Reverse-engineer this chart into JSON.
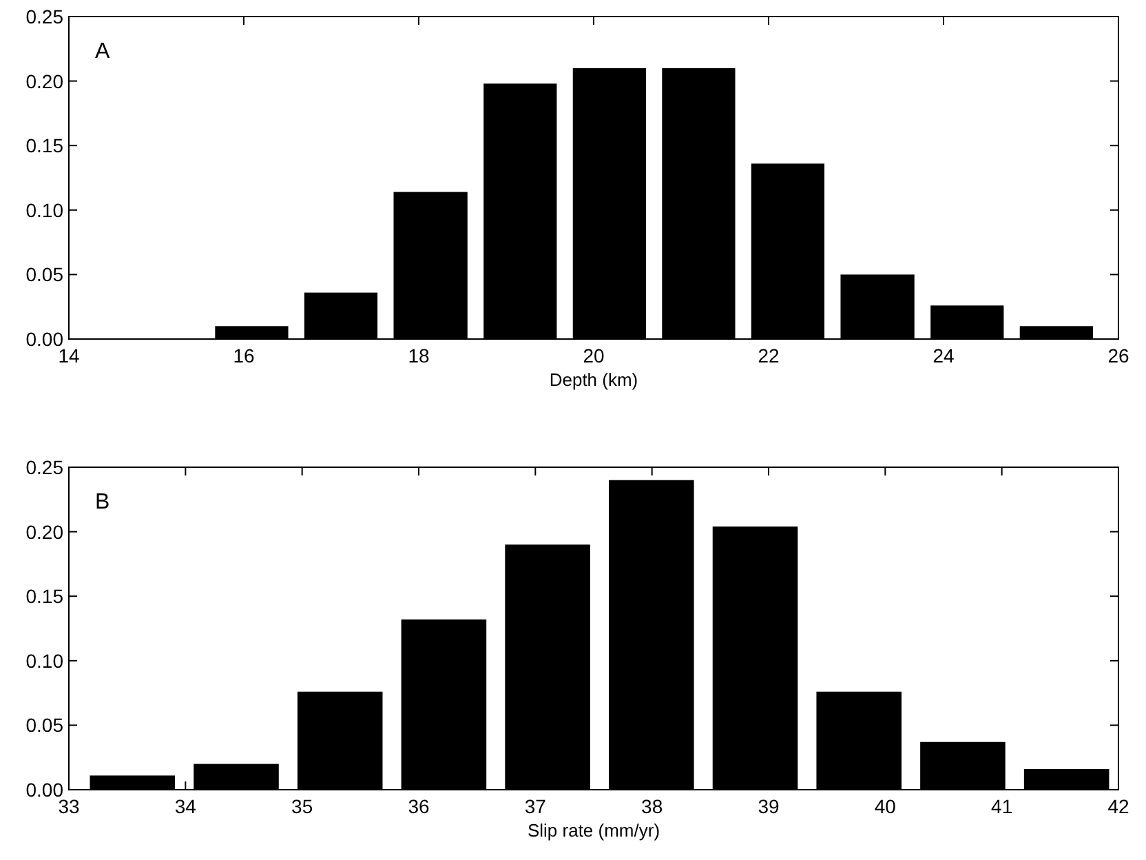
{
  "chart_data": [
    {
      "type": "histogram",
      "title": "A",
      "xlabel": "Depth (km)",
      "bins": [
        15.58,
        16.6,
        17.62,
        18.65,
        19.67,
        20.69,
        21.71,
        22.73,
        23.76,
        24.78,
        25.8
      ],
      "values": [
        0.01,
        0.036,
        0.114,
        0.198,
        0.21,
        0.21,
        0.136,
        0.05,
        0.026,
        0.01
      ],
      "color": "#000000",
      "xlim": [
        14,
        26
      ],
      "xticks": [
        14,
        16,
        18,
        20,
        22,
        24,
        26
      ],
      "ylim": [
        0,
        0.25
      ],
      "yticks": [
        {
          "value": 0,
          "label": "0.00"
        },
        {
          "value": 0.05,
          "label": "0.05"
        },
        {
          "value": 0.1,
          "label": "0.10"
        },
        {
          "value": 0.15,
          "label": "0.15"
        },
        {
          "value": 0.2,
          "label": "0.20"
        },
        {
          "value": 0.25,
          "label": "0.25"
        }
      ],
      "grid": false
    },
    {
      "type": "histogram",
      "title": "B",
      "xlabel": "Slip rate  (mm/yr)",
      "bins": [
        33.1,
        33.99,
        34.88,
        35.77,
        36.66,
        37.55,
        38.44,
        39.33,
        40.22,
        41.11,
        42.0
      ],
      "values": [
        0.011,
        0.02,
        0.076,
        0.132,
        0.19,
        0.24,
        0.204,
        0.076,
        0.037,
        0.016
      ],
      "color": "#000000",
      "xlim": [
        33,
        42
      ],
      "xticks": [
        33,
        34,
        35,
        36,
        37,
        38,
        39,
        40,
        41,
        42
      ],
      "ylim": [
        0,
        0.25
      ],
      "yticks": [
        {
          "value": 0,
          "label": "0.00"
        },
        {
          "value": 0.05,
          "label": "0.05"
        },
        {
          "value": 0.1,
          "label": "0.10"
        },
        {
          "value": 0.15,
          "label": "0.15"
        },
        {
          "value": 0.2,
          "label": "0.20"
        },
        {
          "value": 0.25,
          "label": "0.25"
        }
      ],
      "grid": false
    }
  ]
}
